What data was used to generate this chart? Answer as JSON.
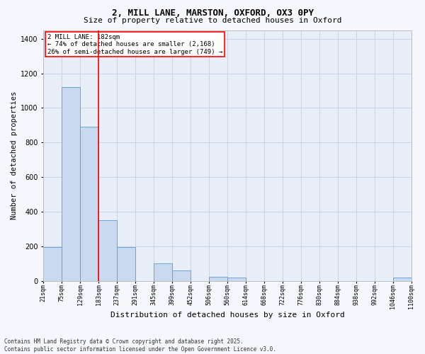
{
  "title_line1": "2, MILL LANE, MARSTON, OXFORD, OX3 0PY",
  "title_line2": "Size of property relative to detached houses in Oxford",
  "xlabel": "Distribution of detached houses by size in Oxford",
  "ylabel": "Number of detached properties",
  "footer_line1": "Contains HM Land Registry data © Crown copyright and database right 2025.",
  "footer_line2": "Contains public sector information licensed under the Open Government Licence v3.0.",
  "annotation_line1": "2 MILL LANE: 182sqm",
  "annotation_line2": "← 74% of detached houses are smaller (2,168)",
  "annotation_line3": "26% of semi-detached houses are larger (749) →",
  "bar_color": "#c9d9f0",
  "bar_edge_color": "#5b9bd5",
  "grid_color": "#c8d4e8",
  "bg_color": "#e8eef8",
  "fig_bg_color": "#f5f7fd",
  "red_line_color": "red",
  "red_line_x": 183,
  "bin_edges": [
    21,
    75,
    129,
    183,
    237,
    291,
    345,
    399,
    452,
    506,
    560,
    614,
    668,
    722,
    776,
    830,
    884,
    938,
    992,
    1046,
    1100
  ],
  "bar_heights": [
    195,
    1120,
    890,
    350,
    195,
    0,
    100,
    60,
    0,
    25,
    20,
    0,
    0,
    0,
    0,
    0,
    0,
    0,
    0,
    20
  ],
  "tick_labels": [
    "21sqm",
    "75sqm",
    "129sqm",
    "183sqm",
    "237sqm",
    "291sqm",
    "345sqm",
    "399sqm",
    "452sqm",
    "506sqm",
    "560sqm",
    "614sqm",
    "668sqm",
    "722sqm",
    "776sqm",
    "830sqm",
    "884sqm",
    "938sqm",
    "992sqm",
    "1046sqm",
    "1100sqm"
  ],
  "ylim": [
    0,
    1450
  ],
  "yticks": [
    0,
    200,
    400,
    600,
    800,
    1000,
    1200,
    1400
  ],
  "title_fontsize": 9,
  "subtitle_fontsize": 8,
  "ylabel_fontsize": 7.5,
  "xlabel_fontsize": 8,
  "tick_fontsize": 6,
  "footer_fontsize": 5.5,
  "ann_fontsize": 6.5
}
